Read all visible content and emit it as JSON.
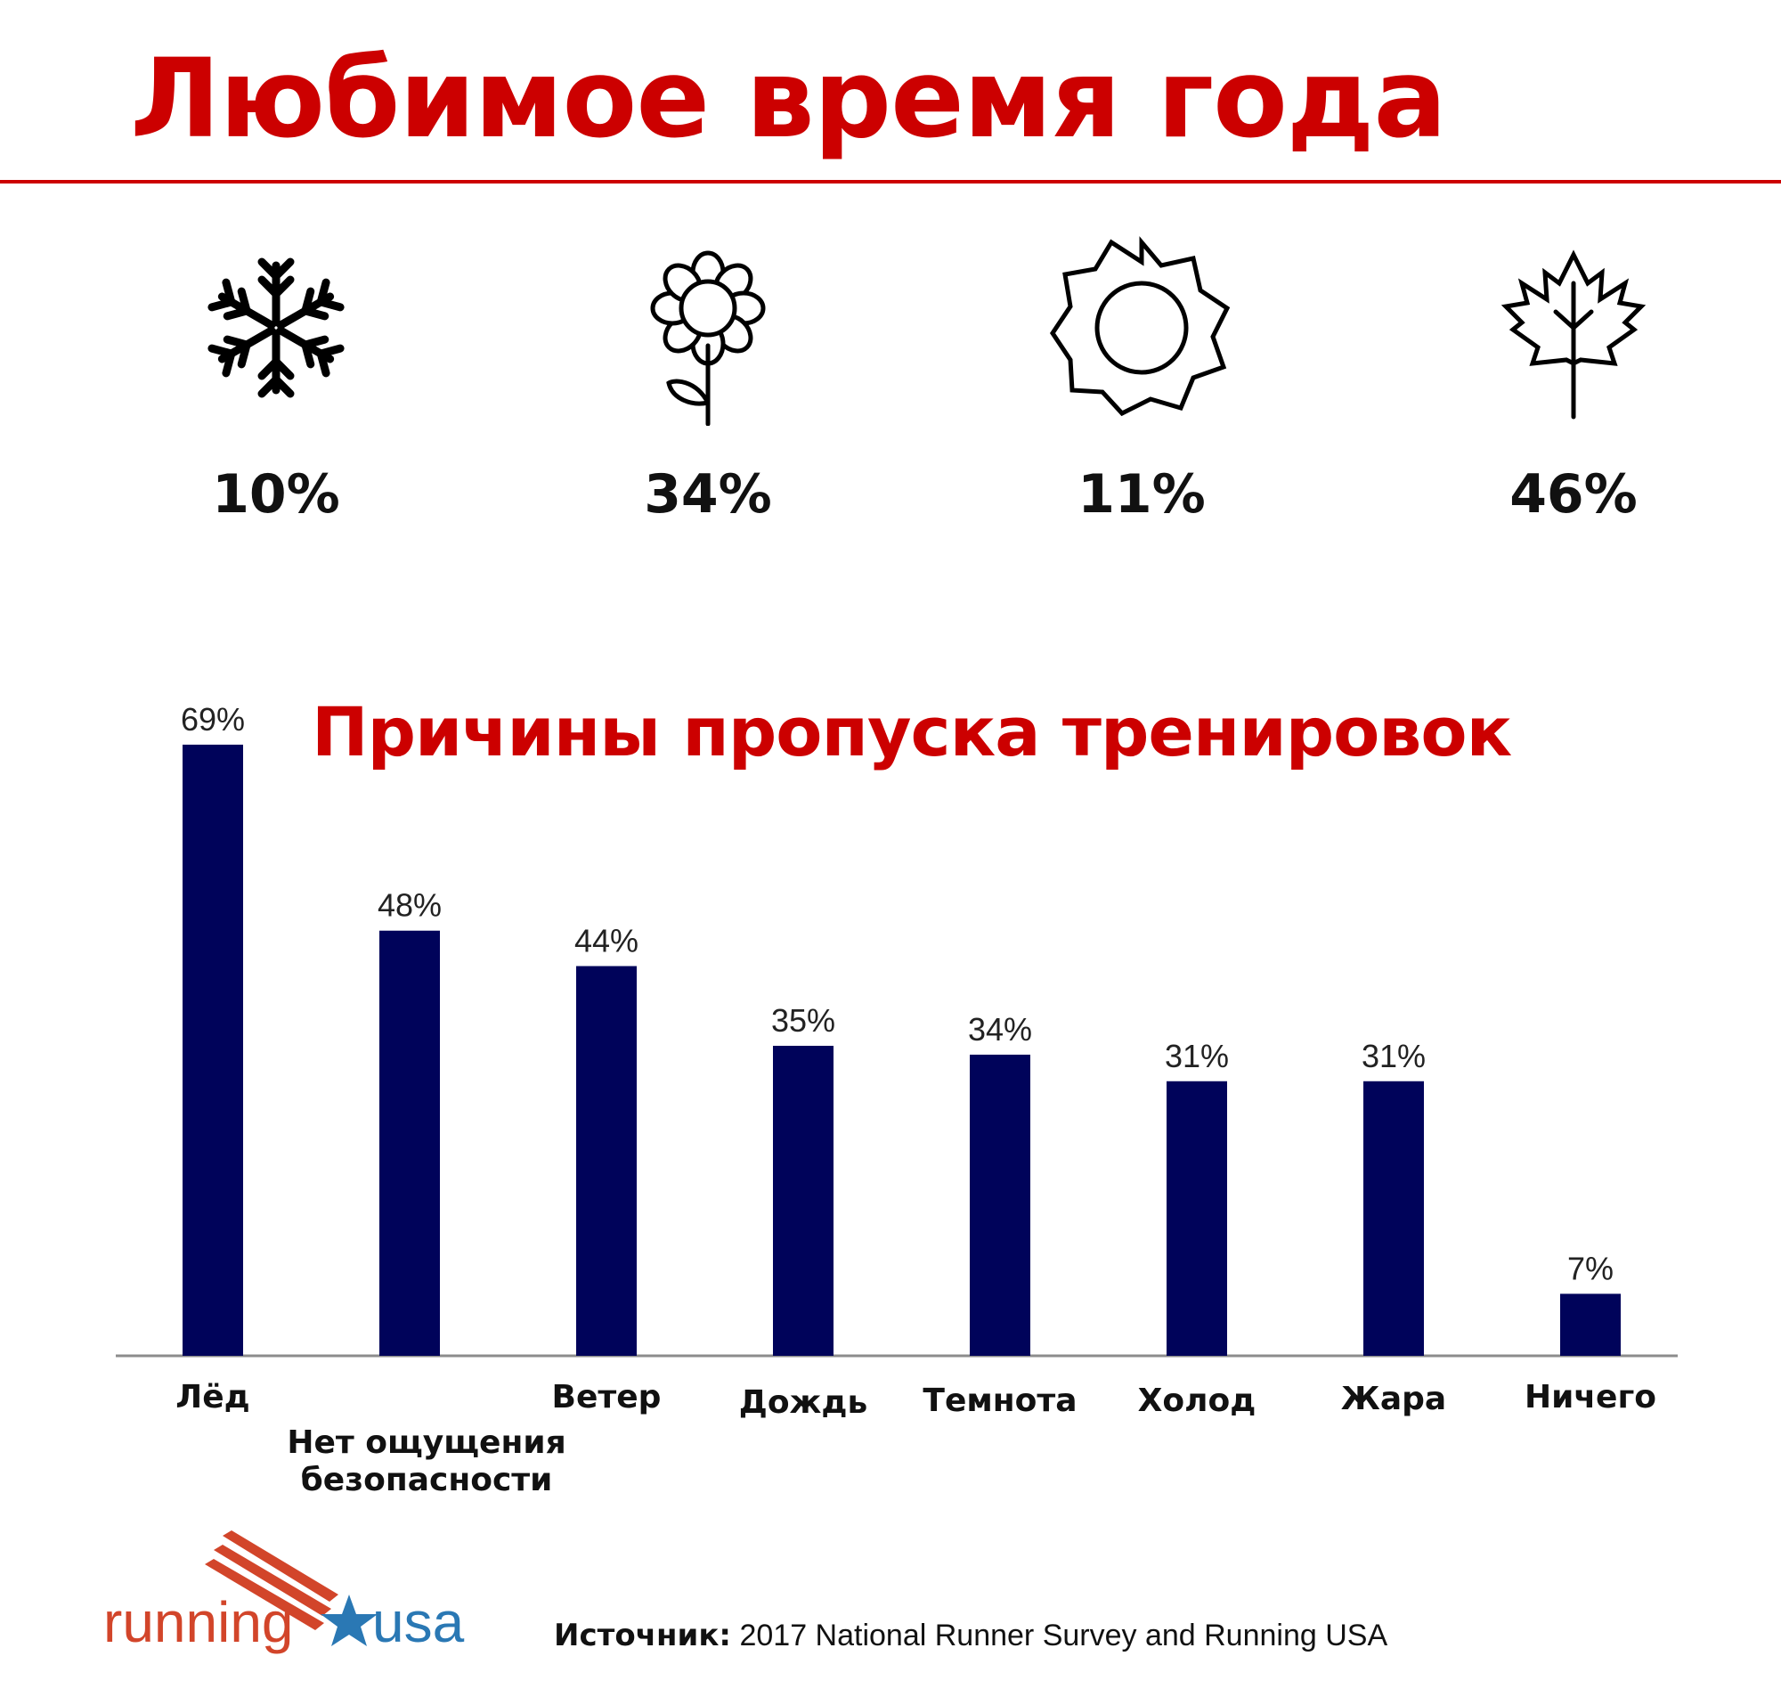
{
  "title": "Любимое время года",
  "seasons": [
    {
      "icon": "snowflake-icon",
      "value": "10%"
    },
    {
      "icon": "flower-icon",
      "value": "34%"
    },
    {
      "icon": "sun-icon",
      "value": "11%"
    },
    {
      "icon": "maple-leaf-icon",
      "value": "46%"
    }
  ],
  "colors": {
    "accent": "#cc0000",
    "bar": "#00035a",
    "text": "#111111",
    "axis": "#8c8c8c"
  },
  "chart_data": {
    "type": "bar",
    "title": "Причины пропуска тренировок",
    "categories": [
      "Лёд",
      "Нет ощущения безопасности",
      "Ветер",
      "Дождь",
      "Темнота",
      "Холод",
      "Жара",
      "Ничего"
    ],
    "category_labels": [
      [
        "Лёд"
      ],
      [
        "Нет ощущения",
        "безопасности"
      ],
      [
        "Ветер"
      ],
      [
        "Дождь"
      ],
      [
        "Темнота"
      ],
      [
        "Холод"
      ],
      [
        "Жара"
      ],
      [
        "Ничего"
      ]
    ],
    "values": [
      69,
      48,
      44,
      35,
      34,
      31,
      31,
      7
    ],
    "value_labels": [
      "69%",
      "48%",
      "44%",
      "35%",
      "34%",
      "31%",
      "31%",
      "7%"
    ],
    "xlabel": "",
    "ylabel": "",
    "ylim": [
      0,
      70
    ],
    "grid": false,
    "legend": "none"
  },
  "footer": {
    "source_label": "Источник:",
    "source_text": " 2017 National Runner Survey and Running USA",
    "logo_word_left": "running",
    "logo_word_right": "usa"
  }
}
